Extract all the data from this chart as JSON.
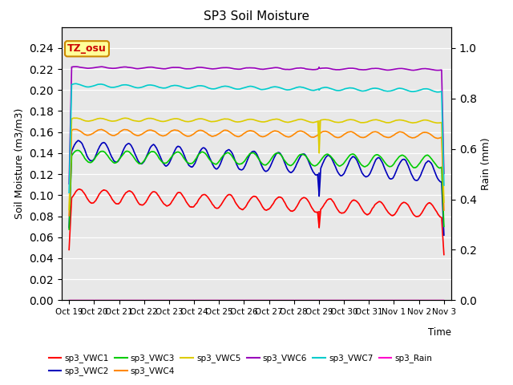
{
  "title": "SP3 Soil Moisture",
  "xlabel": "Time",
  "ylabel_left": "Soil Moisture (m3/m3)",
  "ylabel_right": "Rain (mm)",
  "ylim_left": [
    0.0,
    0.26
  ],
  "ylim_right": [
    0.0,
    1.083
  ],
  "yticks_left": [
    0.0,
    0.02,
    0.04,
    0.06,
    0.08,
    0.1,
    0.12,
    0.14,
    0.16,
    0.18,
    0.2,
    0.22,
    0.24
  ],
  "yticks_right": [
    0.0,
    0.2,
    0.4,
    0.6,
    0.8,
    1.0
  ],
  "xtick_labels": [
    "Oct 19",
    "Oct 20",
    "Oct 21",
    "Oct 22",
    "Oct 23",
    "Oct 24",
    "Oct 25",
    "Oct 26",
    "Oct 27",
    "Oct 28",
    "Oct 29",
    "Oct 30",
    "Oct 31",
    "Nov 1",
    "Nov 2",
    "Nov 3"
  ],
  "n_points": 1440,
  "colors": {
    "sp3_VWC1": "#ff0000",
    "sp3_VWC2": "#0000bb",
    "sp3_VWC3": "#00cc00",
    "sp3_VWC4": "#ff8800",
    "sp3_VWC5": "#ddcc00",
    "sp3_VWC6": "#9900bb",
    "sp3_VWC7": "#00cccc",
    "sp3_Rain": "#ff00cc"
  },
  "background_color": "#e8e8e8",
  "label_box_color": "#ffff99",
  "label_box_edge": "#cc8800",
  "label_text": "TZ_osu",
  "label_text_color": "#cc0000"
}
